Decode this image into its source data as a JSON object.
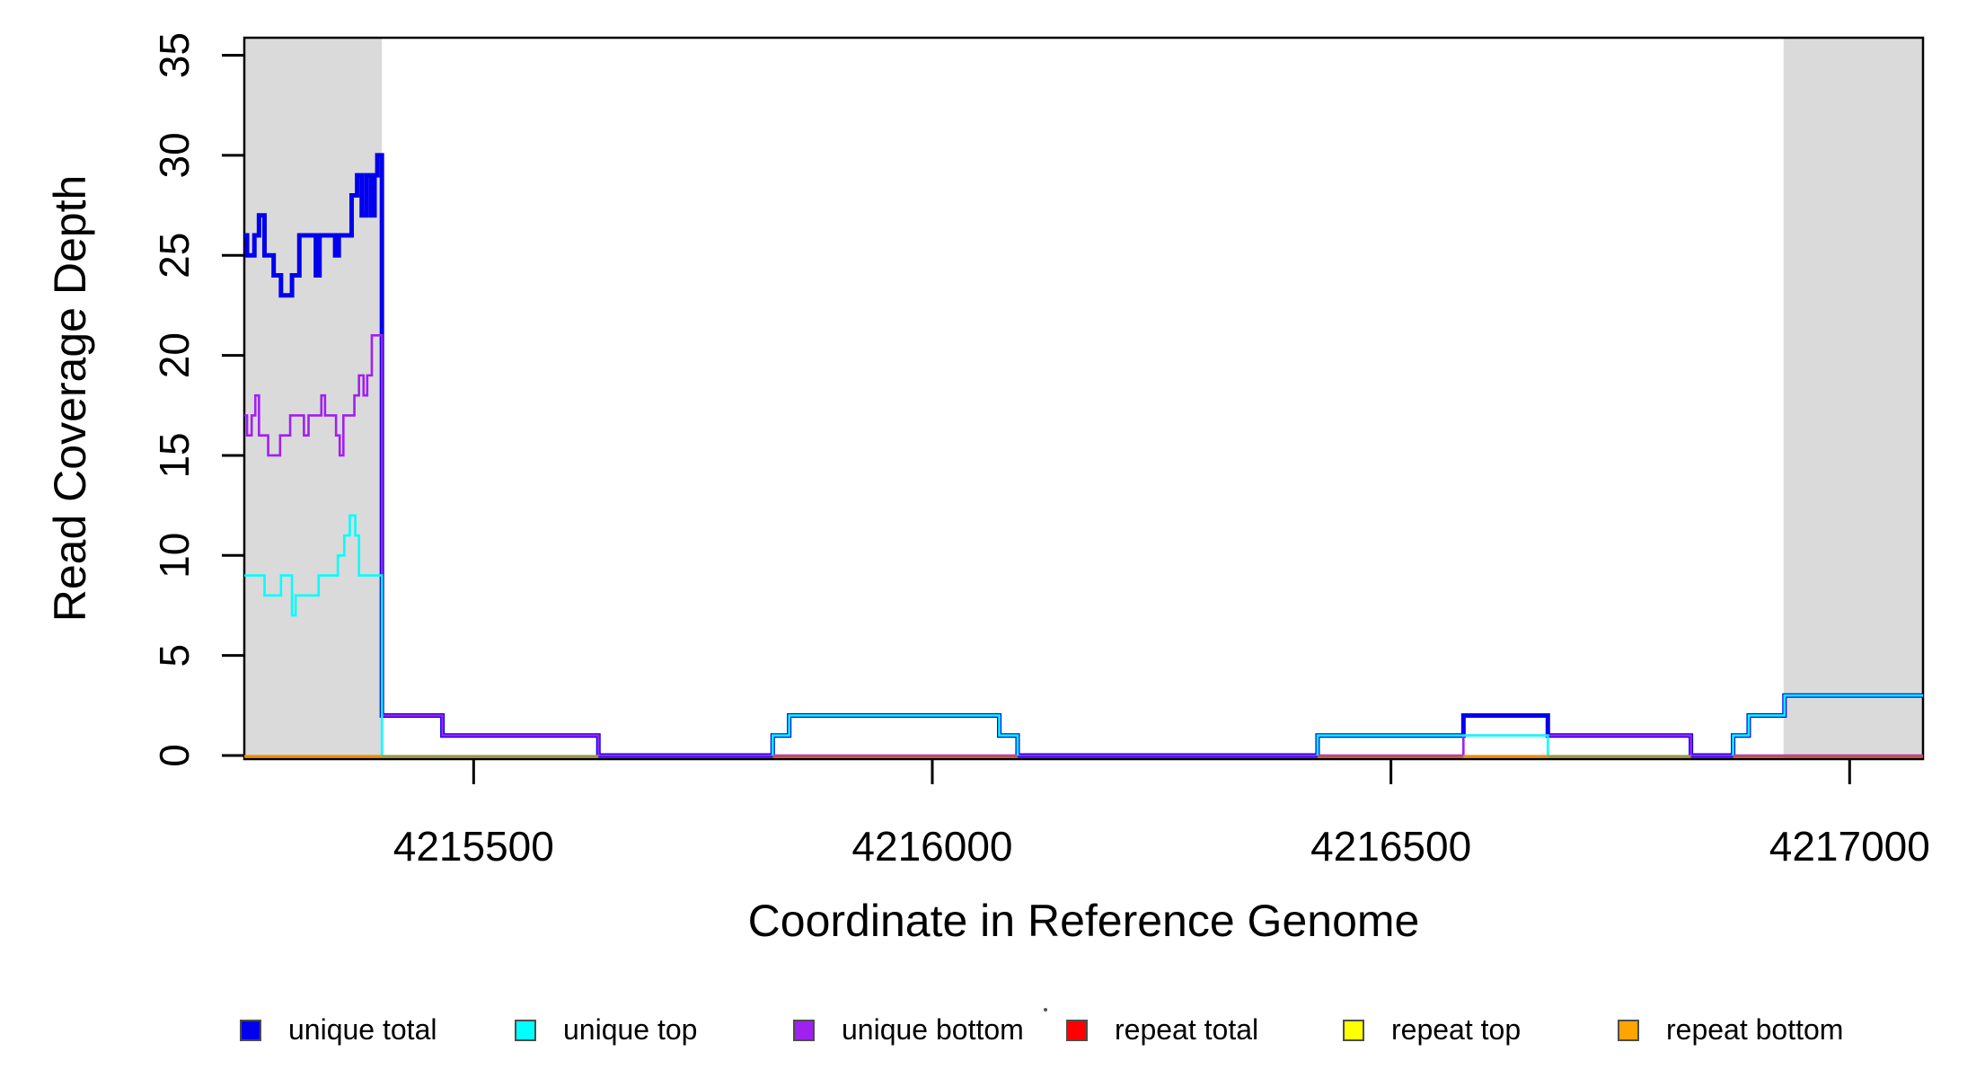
{
  "chart_data": {
    "type": "line",
    "subtype": "step-coverage",
    "title": "",
    "xlabel": "Coordinate in Reference Genome",
    "ylabel": "Read Coverage Depth",
    "x_axis": {
      "range": [
        4215250,
        4217080
      ],
      "ticks": [
        4215500,
        4216000,
        4216500,
        4217000
      ],
      "tick_labels": [
        "4215500",
        "4216000",
        "4216500",
        "4217000"
      ]
    },
    "y_axis": {
      "range": [
        0,
        35.8
      ],
      "ticks": [
        0,
        5,
        10,
        15,
        20,
        25,
        30,
        35
      ],
      "tick_labels": [
        "0",
        "5",
        "10",
        "15",
        "20",
        "25",
        "30",
        "35"
      ]
    },
    "shaded_regions": [
      {
        "x0": 4215250,
        "x1": 4215400
      },
      {
        "x0": 4216928,
        "x1": 4217080
      }
    ],
    "shade_color": "#dadada",
    "grid": false,
    "legend_position": "bottom",
    "series": [
      {
        "name": "unique total",
        "color": "#0000ee",
        "width": 5,
        "steps": [
          [
            4215250,
            26
          ],
          [
            4215253,
            25
          ],
          [
            4215261,
            26
          ],
          [
            4215266,
            27
          ],
          [
            4215272,
            25
          ],
          [
            4215282,
            24
          ],
          [
            4215290,
            23
          ],
          [
            4215302,
            24
          ],
          [
            4215310,
            26
          ],
          [
            4215328,
            24
          ],
          [
            4215332,
            26
          ],
          [
            4215349,
            25
          ],
          [
            4215353,
            26
          ],
          [
            4215367,
            28
          ],
          [
            4215373,
            29
          ],
          [
            4215378,
            27
          ],
          [
            4215383,
            29
          ],
          [
            4215388,
            27
          ],
          [
            4215392,
            29
          ],
          [
            4215395,
            30
          ],
          [
            4215400,
            2
          ],
          [
            4215466,
            1
          ],
          [
            4215636,
            0
          ],
          [
            4215826,
            1
          ],
          [
            4215844,
            2
          ],
          [
            4216073,
            1
          ],
          [
            4216093,
            0
          ],
          [
            4216420,
            1
          ],
          [
            4216579,
            2
          ],
          [
            4216671,
            1
          ],
          [
            4216827,
            0
          ],
          [
            4216873,
            1
          ],
          [
            4216890,
            2
          ],
          [
            4216929,
            3
          ]
        ],
        "xend": 4217080,
        "skip_zero": false
      },
      {
        "name": "unique bottom",
        "color": "#a020f0",
        "width": 2.6,
        "steps": [
          [
            4215250,
            17
          ],
          [
            4215253,
            16
          ],
          [
            4215258,
            17
          ],
          [
            4215262,
            18
          ],
          [
            4215266,
            16
          ],
          [
            4215276,
            15
          ],
          [
            4215289,
            16
          ],
          [
            4215300,
            17
          ],
          [
            4215315,
            16
          ],
          [
            4215320,
            17
          ],
          [
            4215334,
            18
          ],
          [
            4215338,
            17
          ],
          [
            4215350,
            16
          ],
          [
            4215354,
            15
          ],
          [
            4215358,
            17
          ],
          [
            4215370,
            18
          ],
          [
            4215375,
            19
          ],
          [
            4215380,
            18
          ],
          [
            4215384,
            19
          ],
          [
            4215389,
            21
          ],
          [
            4215400,
            2
          ],
          [
            4215466,
            1
          ],
          [
            4215636,
            0
          ],
          [
            4216579,
            1
          ],
          [
            4216827,
            0
          ]
        ],
        "xend": 4217080,
        "skip_zero": false
      },
      {
        "name": "unique top",
        "color": "#00ffff",
        "width": 2.6,
        "steps": [
          [
            4215250,
            9
          ],
          [
            4215272,
            8
          ],
          [
            4215290,
            9
          ],
          [
            4215302,
            7
          ],
          [
            4215306,
            8
          ],
          [
            4215331,
            9
          ],
          [
            4215352,
            10
          ],
          [
            4215359,
            11
          ],
          [
            4215365,
            12
          ],
          [
            4215371,
            11
          ],
          [
            4215375,
            9
          ],
          [
            4215400,
            0
          ],
          [
            4215826,
            1
          ],
          [
            4215844,
            2
          ],
          [
            4216073,
            1
          ],
          [
            4216093,
            0
          ],
          [
            4216420,
            1
          ],
          [
            4216671,
            0
          ],
          [
            4216873,
            1
          ],
          [
            4216890,
            2
          ],
          [
            4216929,
            3
          ]
        ],
        "xend": 4217080,
        "skip_zero": true
      }
    ],
    "baseline_series": [
      {
        "name": "repeat total",
        "legend_color": "#ff0000",
        "display_color": "#c85050",
        "value": 0,
        "segments": [
          [
            4215826,
            4216093
          ],
          [
            4216420,
            4216579
          ],
          [
            4216873,
            4217080
          ]
        ]
      },
      {
        "name": "repeat top",
        "legend_color": "#ffff00",
        "display_color": "#9a9a45",
        "value": 0,
        "segments": [
          [
            4215400,
            4215636
          ],
          [
            4216671,
            4216827
          ]
        ]
      },
      {
        "name": "repeat bottom",
        "legend_color": "#ffa500",
        "display_color": "#f08c00",
        "value": 0,
        "segments": [
          [
            4215250,
            4215400
          ],
          [
            4216579,
            4216671
          ]
        ]
      }
    ],
    "legend": [
      {
        "label": "unique total",
        "color": "#0000ee"
      },
      {
        "label": "unique top",
        "color": "#00ffff"
      },
      {
        "label": "unique bottom",
        "color": "#a020f0"
      },
      {
        "label": "repeat total",
        "color": "#ff0000"
      },
      {
        "label": "repeat top",
        "color": "#ffff00"
      },
      {
        "label": "repeat bottom",
        "color": "#ffa500"
      }
    ]
  },
  "labels": {
    "x_title": "Coordinate in Reference Genome",
    "y_title": "Read Coverage Depth"
  },
  "colors": {
    "axis": "#000000",
    "shade": "#dadada",
    "background": "#ffffff"
  }
}
